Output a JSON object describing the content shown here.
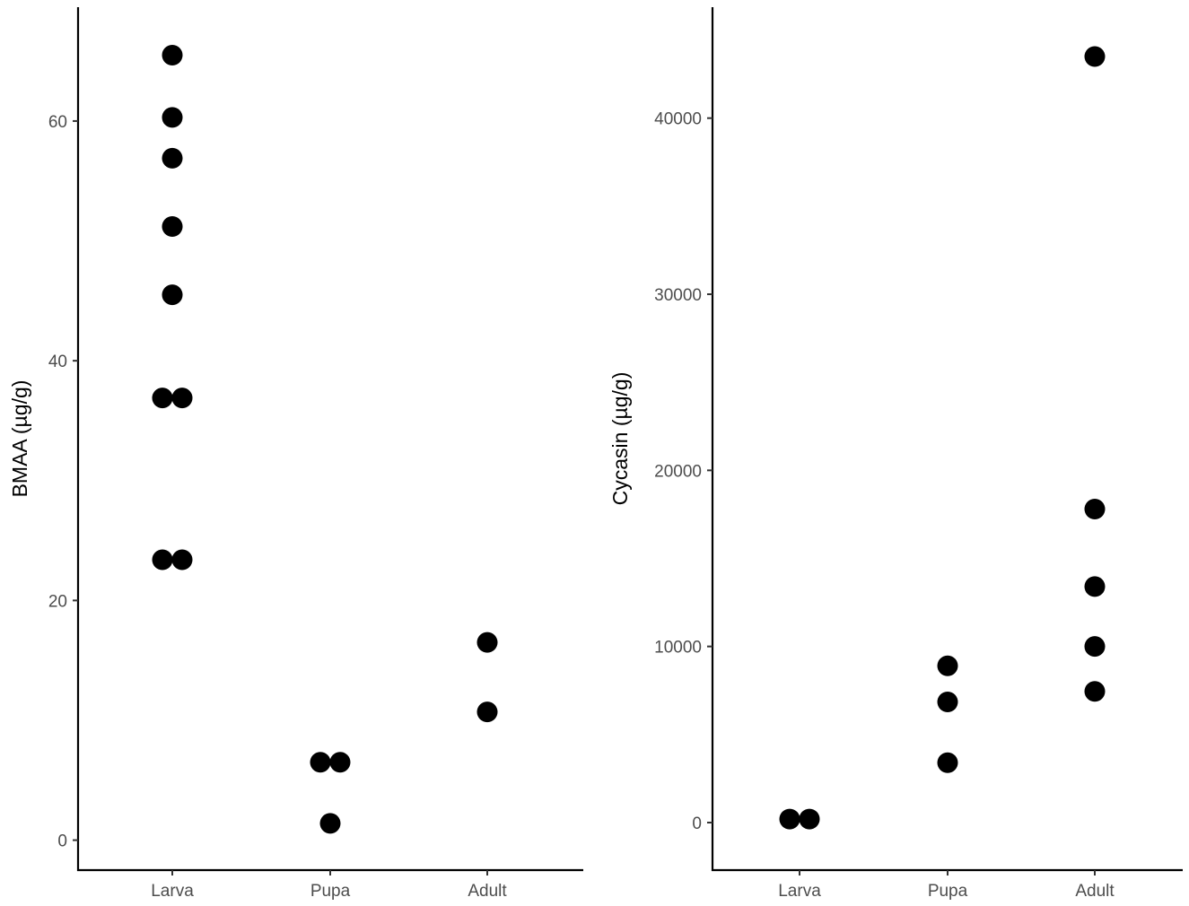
{
  "chart_data": [
    {
      "type": "scatter",
      "title": "",
      "xlabel": "",
      "ylabel": "BMAA (µg/g)",
      "categories": [
        "Larva",
        "Pupa",
        "Adult"
      ],
      "ylim": [
        -2.5,
        69.5
      ],
      "yticks": [
        0,
        20,
        40,
        60
      ],
      "yticklabels": [
        "0",
        "20",
        "40",
        "60"
      ],
      "grid": false,
      "legend": "none",
      "point_color": "#000000",
      "points": [
        {
          "x": "Larva",
          "y": 65.5
        },
        {
          "x": "Larva",
          "y": 60.3
        },
        {
          "x": "Larva",
          "y": 56.9
        },
        {
          "x": "Larva",
          "y": 51.2
        },
        {
          "x": "Larva",
          "y": 45.5
        },
        {
          "x": "Larva",
          "y": 36.9
        },
        {
          "x": "Larva",
          "y": 36.9
        },
        {
          "x": "Larva",
          "y": 23.4
        },
        {
          "x": "Larva",
          "y": 23.4
        },
        {
          "x": "Pupa",
          "y": 6.5
        },
        {
          "x": "Pupa",
          "y": 6.5
        },
        {
          "x": "Pupa",
          "y": 1.4
        },
        {
          "x": "Adult",
          "y": 16.5
        },
        {
          "x": "Adult",
          "y": 10.7
        }
      ]
    },
    {
      "type": "scatter",
      "title": "",
      "xlabel": "",
      "ylabel": "Cycasin (µg/g)",
      "categories": [
        "Larva",
        "Pupa",
        "Adult"
      ],
      "ylim": [
        -2700,
        46300
      ],
      "yticks": [
        0,
        10000,
        20000,
        30000,
        40000
      ],
      "yticklabels": [
        "0",
        "10000",
        "20000",
        "30000",
        "40000"
      ],
      "grid": false,
      "legend": "none",
      "point_color": "#000000",
      "points": [
        {
          "x": "Larva",
          "y": 200
        },
        {
          "x": "Larva",
          "y": 200
        },
        {
          "x": "Pupa",
          "y": 8900
        },
        {
          "x": "Pupa",
          "y": 6850
        },
        {
          "x": "Pupa",
          "y": 3400
        },
        {
          "x": "Adult",
          "y": 43500
        },
        {
          "x": "Adult",
          "y": 17800
        },
        {
          "x": "Adult",
          "y": 13400
        },
        {
          "x": "Adult",
          "y": 10000
        },
        {
          "x": "Adult",
          "y": 7450
        }
      ]
    }
  ]
}
